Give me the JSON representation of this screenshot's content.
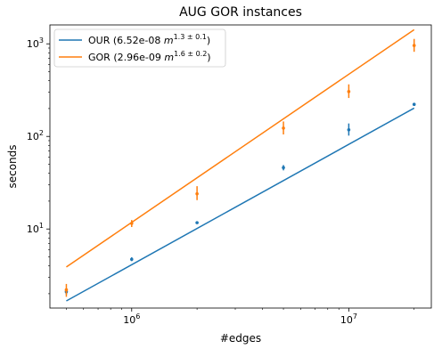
{
  "chart_data": {
    "type": "scatter",
    "title": "AUG GOR instances",
    "xlabel": "#edges",
    "ylabel": "seconds",
    "xscale": "log",
    "yscale": "log",
    "xlim": [
      420000,
      24000000
    ],
    "ylim": [
      1.4,
      1600
    ],
    "x_ticks": [
      {
        "value": 1000000,
        "base": "10",
        "exp": "6"
      },
      {
        "value": 10000000,
        "base": "10",
        "exp": "7"
      }
    ],
    "y_ticks": [
      {
        "value": 10,
        "base": "10",
        "exp": "1"
      },
      {
        "value": 100,
        "base": "10",
        "exp": "2"
      },
      {
        "value": 1000,
        "base": "10",
        "exp": "3"
      }
    ],
    "legend_position": "top-left",
    "grid": false,
    "series": [
      {
        "name_prefix": "OUR (6.52e-08 ",
        "name_var": "m",
        "name_exp": "1.3 ± 0.1",
        "name_suffix": ")",
        "color": "#1f77b4",
        "points": [
          {
            "x": 500000,
            "y": 2.1,
            "lo": 1.95,
            "hi": 2.3
          },
          {
            "x": 1000000,
            "y": 4.7,
            "lo": 4.5,
            "hi": 4.95
          },
          {
            "x": 2000000,
            "y": 11.7,
            "lo": 11.4,
            "hi": 12.0
          },
          {
            "x": 5000000,
            "y": 46,
            "lo": 43,
            "hi": 49
          },
          {
            "x": 10000000,
            "y": 118,
            "lo": 102,
            "hi": 138
          },
          {
            "x": 20000000,
            "y": 222,
            "lo": 216,
            "hi": 228
          }
        ],
        "fit": {
          "coef": 6.52e-08,
          "exp": 1.3
        }
      },
      {
        "name_prefix": "GOR (2.96e-09 ",
        "name_var": "m",
        "name_exp": "1.6 ± 0.2",
        "name_suffix": ")",
        "color": "#ff7f0e",
        "points": [
          {
            "x": 500000,
            "y": 2.2,
            "lo": 1.85,
            "hi": 2.55
          },
          {
            "x": 1000000,
            "y": 11.5,
            "lo": 10.5,
            "hi": 12.5
          },
          {
            "x": 2000000,
            "y": 24,
            "lo": 20.5,
            "hi": 29
          },
          {
            "x": 5000000,
            "y": 123,
            "lo": 105,
            "hi": 145
          },
          {
            "x": 10000000,
            "y": 305,
            "lo": 260,
            "hi": 365
          },
          {
            "x": 20000000,
            "y": 960,
            "lo": 820,
            "hi": 1130
          }
        ],
        "fit": {
          "coef": 2.96e-09,
          "exp": 1.6
        }
      }
    ]
  }
}
